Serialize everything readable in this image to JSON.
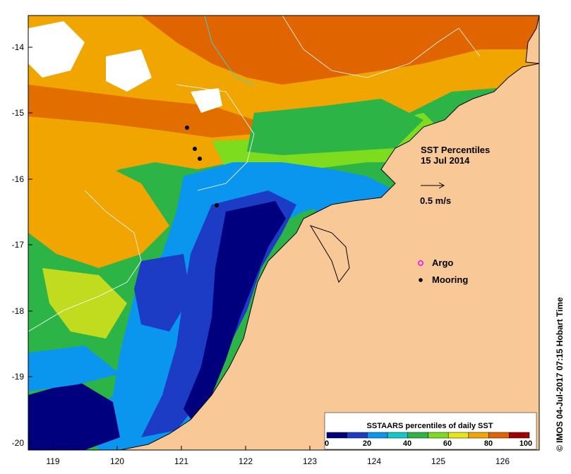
{
  "map": {
    "x_ticks": [
      "119",
      "120",
      "121",
      "122",
      "123",
      "124",
      "125",
      "126"
    ],
    "y_ticks": [
      "-14",
      "-15",
      "-16",
      "-17",
      "-18",
      "-19",
      "-20"
    ],
    "title_line1": "SST Percentiles",
    "title_line2": "15 Jul 2014",
    "vector_scale_label": "0.5 m/s",
    "legend": {
      "argo_label": "Argo",
      "mooring_label": "Mooring"
    },
    "colorbar": {
      "title": "SSTAARS percentiles of daily SST",
      "ticks": [
        "0",
        "20",
        "40",
        "60",
        "80",
        "100"
      ],
      "colors": [
        "#00007f",
        "#1c3cc6",
        "#0a96ef",
        "#14c8c8",
        "#2db446",
        "#7ddc1e",
        "#e6e614",
        "#f0a500",
        "#e06400",
        "#a00000"
      ]
    },
    "credit": "© IMOS 04-Jul-2017 07:15 Hobart Time",
    "land_color": "#f8c896"
  }
}
